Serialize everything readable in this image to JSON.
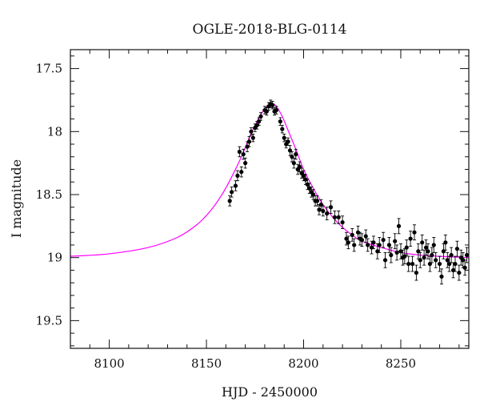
{
  "chart_data": {
    "type": "scatter",
    "title": "OGLE-2018-BLG-0114",
    "xlabel": "HJD - 2450000",
    "ylabel": "I magnitude",
    "xlim": [
      8080,
      8285
    ],
    "ylim": [
      19.72,
      17.35
    ],
    "y_inverted": true,
    "x_ticks": [
      8100,
      8150,
      8200,
      8250
    ],
    "y_ticks": [
      17.5,
      18,
      18.5,
      19,
      19.5
    ],
    "x_tick_labels": [
      "8100",
      "8150",
      "8200",
      "8250"
    ],
    "y_tick_labels": [
      "17.5",
      "18",
      "18.5",
      "19",
      "19.5"
    ],
    "colors": {
      "model": "#ff00ff",
      "points": "#000000"
    },
    "model": {
      "x": [
        8080,
        8100,
        8120,
        8135,
        8145,
        8152,
        8158,
        8163,
        8168,
        8172,
        8176,
        8179,
        8182,
        8184,
        8186,
        8189,
        8192,
        8196,
        8200,
        8205,
        8210,
        8215,
        8220,
        8225,
        8230,
        8240,
        8250,
        8260,
        8270,
        8285
      ],
      "y": [
        18.99,
        18.97,
        18.92,
        18.84,
        18.74,
        18.63,
        18.5,
        18.36,
        18.2,
        18.05,
        17.92,
        17.84,
        17.79,
        17.78,
        17.8,
        17.88,
        17.99,
        18.14,
        18.3,
        18.45,
        18.58,
        18.68,
        18.76,
        18.82,
        18.87,
        18.92,
        18.96,
        18.98,
        18.99,
        19.0
      ]
    },
    "series": [
      {
        "x": [
          8162,
          8163,
          8165,
          8166,
          8167,
          8168,
          8169,
          8170,
          8171,
          8172,
          8173,
          8174,
          8175,
          8176,
          8177,
          8178,
          8180,
          8181,
          8182,
          8183,
          8184,
          8185,
          8186,
          8188,
          8189,
          8190,
          8191,
          8192,
          8193,
          8194,
          8195,
          8196,
          8197,
          8198,
          8199,
          8200,
          8201,
          8202,
          8203,
          8204,
          8205,
          8206,
          8207,
          8208,
          8209,
          8210,
          8212,
          8214,
          8216,
          8218,
          8220,
          8222,
          8223,
          8225,
          8226,
          8228,
          8229,
          8230,
          8232,
          8233,
          8235,
          8236,
          8238,
          8239,
          8241,
          8242,
          8244,
          8245,
          8247,
          8248,
          8249,
          8250,
          8251,
          8252,
          8253,
          8254,
          8255,
          8256,
          8257,
          8258,
          8259,
          8260,
          8261,
          8262,
          8263,
          8264,
          8265,
          8266,
          8267,
          8268,
          8270,
          8271,
          8272,
          8273,
          8274,
          8275,
          8276,
          8277,
          8278,
          8279,
          8280,
          8281,
          8282,
          8283,
          8284
        ],
        "y": [
          18.55,
          18.48,
          18.43,
          18.35,
          18.16,
          18.32,
          18.18,
          18.25,
          18.12,
          18.08,
          18.0,
          18.05,
          17.97,
          17.95,
          17.92,
          17.88,
          17.83,
          17.84,
          17.8,
          17.78,
          17.79,
          17.84,
          17.83,
          17.92,
          17.98,
          18.05,
          18.1,
          18.08,
          18.15,
          18.2,
          18.25,
          18.18,
          18.3,
          18.28,
          18.33,
          18.35,
          18.38,
          18.42,
          18.45,
          18.48,
          18.5,
          18.55,
          18.55,
          18.62,
          18.58,
          18.63,
          18.65,
          18.6,
          18.68,
          18.68,
          18.72,
          18.85,
          18.88,
          18.82,
          18.9,
          18.8,
          18.85,
          18.86,
          18.83,
          18.9,
          18.92,
          18.88,
          18.95,
          18.9,
          18.86,
          19.02,
          18.9,
          18.98,
          18.87,
          18.96,
          18.75,
          18.95,
          19.0,
          18.99,
          18.92,
          19.05,
          18.85,
          19.05,
          18.8,
          19.12,
          18.95,
          19.02,
          18.88,
          19.0,
          18.92,
          18.95,
          19.05,
          18.98,
          18.9,
          19.02,
          19.05,
          19.15,
          18.95,
          18.88,
          19.02,
          19.05,
          18.98,
          19.1,
          19.05,
          18.93,
          19.12,
          19.0,
          19.02,
          19.08,
          18.98
        ],
        "yerr": [
          0.04,
          0.04,
          0.04,
          0.04,
          0.04,
          0.04,
          0.04,
          0.04,
          0.04,
          0.04,
          0.03,
          0.03,
          0.03,
          0.03,
          0.03,
          0.03,
          0.03,
          0.03,
          0.03,
          0.03,
          0.03,
          0.03,
          0.03,
          0.03,
          0.03,
          0.03,
          0.03,
          0.03,
          0.04,
          0.04,
          0.04,
          0.04,
          0.04,
          0.04,
          0.04,
          0.04,
          0.04,
          0.04,
          0.04,
          0.04,
          0.04,
          0.04,
          0.04,
          0.04,
          0.04,
          0.04,
          0.05,
          0.05,
          0.05,
          0.05,
          0.05,
          0.05,
          0.05,
          0.05,
          0.05,
          0.05,
          0.05,
          0.05,
          0.05,
          0.05,
          0.05,
          0.05,
          0.06,
          0.06,
          0.06,
          0.06,
          0.06,
          0.06,
          0.06,
          0.06,
          0.06,
          0.06,
          0.06,
          0.06,
          0.06,
          0.06,
          0.06,
          0.06,
          0.06,
          0.06,
          0.06,
          0.06,
          0.06,
          0.06,
          0.06,
          0.06,
          0.06,
          0.06,
          0.06,
          0.06,
          0.06,
          0.06,
          0.06,
          0.06,
          0.06,
          0.06,
          0.06,
          0.06,
          0.06,
          0.06,
          0.06,
          0.06,
          0.06,
          0.06,
          0.06
        ]
      }
    ]
  }
}
